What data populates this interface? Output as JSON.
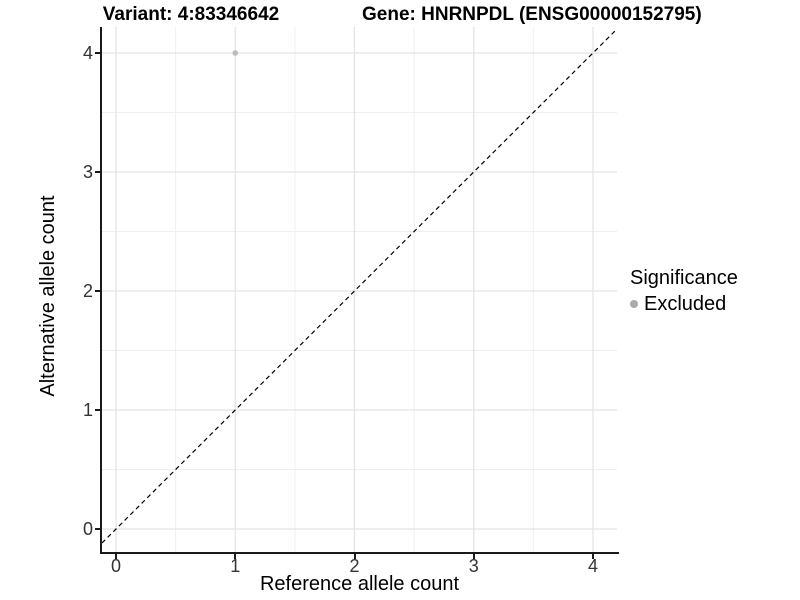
{
  "header": {
    "variant_title": "Variant: 4:83346642",
    "gene_title": "Gene: HNRNPDL (ENSG00000152795)"
  },
  "axes": {
    "x_label": "Reference allele count",
    "y_label": "Alternative allele count"
  },
  "legend": {
    "title": "Significance",
    "items": [
      {
        "label": "Excluded",
        "color": "#ababab"
      }
    ]
  },
  "chart_data": {
    "type": "scatter",
    "title": "Variant: 4:83346642 | Gene: HNRNPDL (ENSG00000152795)",
    "xlabel": "Reference allele count",
    "ylabel": "Alternative allele count",
    "xticks": [
      0,
      1,
      2,
      3,
      4
    ],
    "yticks": [
      0,
      1,
      2,
      3,
      4
    ],
    "xlim": [
      -0.12,
      4.2
    ],
    "ylim": [
      -0.2,
      4.2
    ],
    "grid": "major+minor",
    "legend_position": "right",
    "series": [
      {
        "name": "Excluded",
        "color": "#bcbcbc",
        "points": [
          {
            "x": 1,
            "y": 4
          }
        ]
      }
    ],
    "reference_line": {
      "type": "identity y=x",
      "style": "dashed",
      "color": "#000000"
    }
  },
  "colors": {
    "background": "#ffffff",
    "grid_major": "#e3e3e3",
    "grid_minor": "#efefef",
    "axis": "#1a1a1a",
    "tick_label": "#333333",
    "point": "#bcbcbc",
    "legend_dot": "#ababab"
  }
}
